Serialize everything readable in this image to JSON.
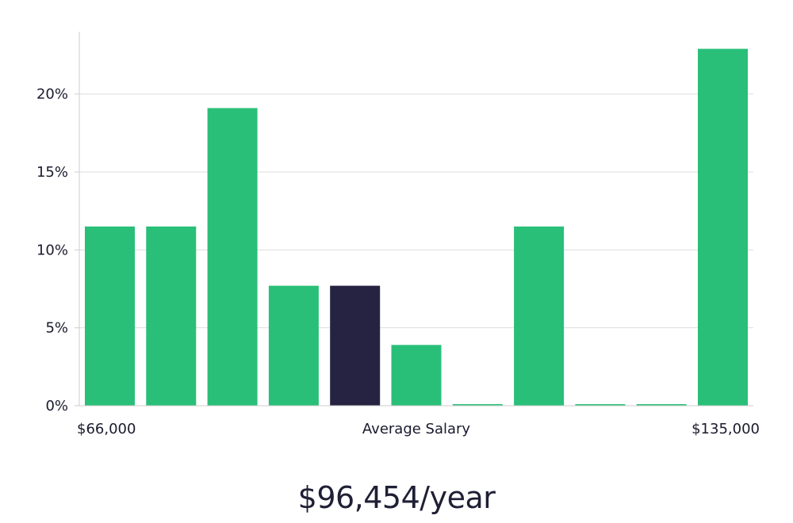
{
  "headline": "$96,454/year",
  "chart_data": {
    "type": "bar",
    "title": "",
    "xlabel": "Average Salary",
    "ylabel": "",
    "x_range_labels": {
      "min": "$66,000",
      "max": "$135,000"
    },
    "values": [
      11.5,
      11.5,
      19.1,
      7.7,
      7.7,
      3.9,
      0.1,
      11.5,
      0.1,
      0.1,
      22.9
    ],
    "highlight_index": 4,
    "ylim": [
      0,
      24
    ],
    "yticks": [
      0,
      5,
      10,
      15,
      20
    ],
    "ytick_labels": [
      "0%",
      "5%",
      "10%",
      "15%",
      "20%"
    ],
    "grid": true,
    "colors": {
      "bar": "#29bf78",
      "highlight": "#262342",
      "grid": "#dddddd",
      "axis": "#cccccc"
    }
  }
}
